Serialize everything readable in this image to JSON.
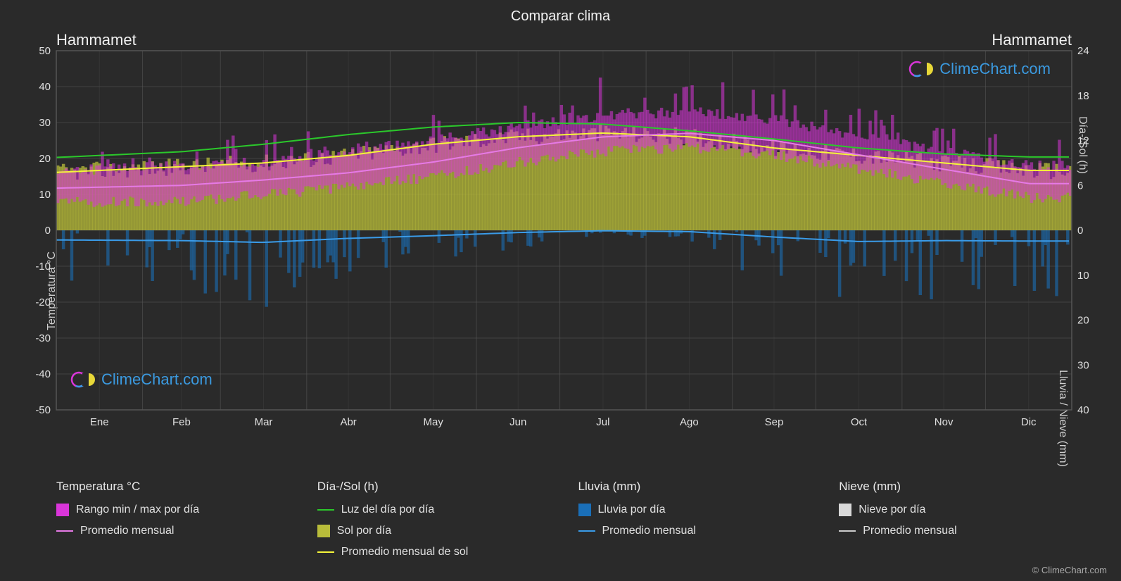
{
  "title": "Comparar clima",
  "location_left": "Hammamet",
  "location_right": "Hammamet",
  "watermark_text": "ClimeChart.com",
  "copyright": "© ClimeChart.com",
  "axes": {
    "y_left_label": "Temperatura °C",
    "y_right_label1": "Día-/Sol (h)",
    "y_right_label2": "Lluvia / Nieve (mm)",
    "y_left_min": -50,
    "y_left_max": 50,
    "y_left_step": 10,
    "y_right_top_min": 0,
    "y_right_top_max": 24,
    "y_right_top_step": 6,
    "y_right_bottom_min": 0,
    "y_right_bottom_max": 40,
    "y_right_bottom_step": 10,
    "x_labels": [
      "Ene",
      "Feb",
      "Mar",
      "Abr",
      "May",
      "Jun",
      "Jul",
      "Ago",
      "Sep",
      "Oct",
      "Nov",
      "Dic"
    ]
  },
  "colors": {
    "background": "#2a2a2a",
    "grid": "#555555",
    "grid_minor": "#444444",
    "text": "#e0e0e0",
    "temp_range": "#d935d9",
    "temp_avg": "#e67ae6",
    "daylight": "#2bc82b",
    "sun_fill": "#b8bc3a",
    "sun_avg": "#f5f53a",
    "rain_fill": "#1a6fb8",
    "rain_avg": "#3a9be8",
    "snow_fill": "#d8d8d8",
    "snow_avg": "#cccccc",
    "brand": "#3b9ae0"
  },
  "legend": {
    "temp_title": "Temperatura °C",
    "temp_range": "Rango min / max por día",
    "temp_avg": "Promedio mensual",
    "daysun_title": "Día-/Sol (h)",
    "daylight": "Luz del día por día",
    "sun_fill": "Sol por día",
    "sun_avg": "Promedio mensual de sol",
    "rain_title": "Lluvia (mm)",
    "rain_daily": "Lluvia por día",
    "rain_avg": "Promedio mensual",
    "snow_title": "Nieve (mm)",
    "snow_daily": "Nieve por día",
    "snow_avg": "Promedio mensual"
  },
  "series": {
    "daylight_hours": [
      10,
      10.5,
      11.5,
      12.8,
      13.8,
      14.4,
      14.2,
      13.3,
      12.2,
      11,
      10.2,
      9.8
    ],
    "sun_hours": [
      8,
      8.5,
      9,
      10,
      11.5,
      12.5,
      13,
      12.5,
      11,
      10,
      9,
      8
    ],
    "sun_hours_daily_noise": 1.2,
    "temp_avg": [
      12,
      12.5,
      14,
      16,
      19,
      23,
      26,
      27,
      25,
      21,
      17,
      13
    ],
    "temp_min_daily": [
      8,
      8,
      10,
      12,
      15,
      19,
      22,
      23,
      21,
      17,
      13,
      9
    ],
    "temp_max_daily": [
      17,
      18,
      19,
      22,
      25,
      29,
      32,
      33,
      31,
      26,
      22,
      18
    ],
    "temp_max_spike": [
      22,
      23,
      25,
      27,
      30,
      35,
      39,
      40,
      37,
      32,
      27,
      23
    ],
    "rain_avg_mm": [
      2.2,
      2.3,
      2.7,
      1.8,
      1.2,
      0.5,
      0.1,
      0.3,
      1.5,
      2.5,
      2.3,
      2.4
    ],
    "rain_daily_spike": [
      12,
      14,
      18,
      10,
      8,
      4,
      1,
      3,
      15,
      20,
      16,
      15
    ]
  }
}
